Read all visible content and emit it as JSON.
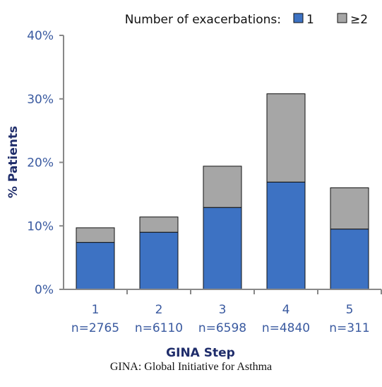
{
  "chart_data": {
    "type": "bar",
    "stacked": true,
    "title": "",
    "xlabel": "GINA Step",
    "ylabel": "% Patients",
    "ylim": [
      0,
      40
    ],
    "yticks": [
      "0%",
      "10%",
      "20%",
      "30%",
      "40%"
    ],
    "categories": [
      "1",
      "2",
      "3",
      "4",
      "5"
    ],
    "sample_sizes": [
      "n=2765",
      "n=6110",
      "n=6598",
      "n=4840",
      "n=311"
    ],
    "legend_title": "Number of exacerbations:",
    "legend_position": "top-right",
    "series": [
      {
        "name": "1",
        "color": "#3d72c3",
        "values": [
          7.4,
          9.0,
          12.9,
          16.9,
          9.5
        ]
      },
      {
        "name": "≥2",
        "color": "#a6a6a6",
        "values": [
          2.3,
          2.4,
          6.5,
          13.9,
          6.5
        ]
      }
    ],
    "grid": false
  },
  "caption": "GINA: Global Initiative for Asthma"
}
